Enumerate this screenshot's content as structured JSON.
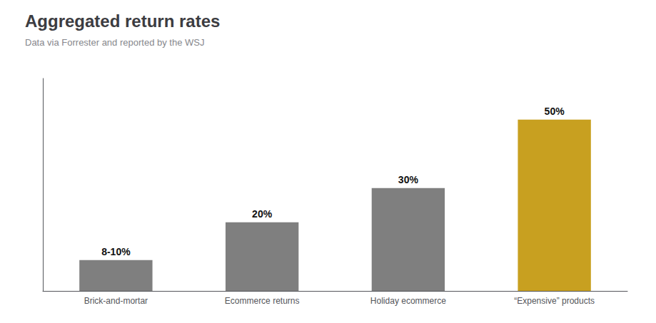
{
  "chart_data": {
    "type": "bar",
    "title": "Aggregated return rates",
    "subtitle": "Data via Forrester and reported by the WSJ",
    "categories": [
      "Brick-and-mortar",
      "Ecommerce returns",
      "Holiday ecommerce",
      "“Expensive” products"
    ],
    "values": [
      9,
      20,
      30,
      50
    ],
    "value_labels": [
      "8-10%",
      "20%",
      "30%",
      "50%"
    ],
    "data_labels": true,
    "colors": [
      "#7f7f7f",
      "#7f7f7f",
      "#7f7f7f",
      "#c8a020"
    ],
    "ylim": [
      0,
      62
    ],
    "grid": false,
    "tick_labels": "x"
  }
}
